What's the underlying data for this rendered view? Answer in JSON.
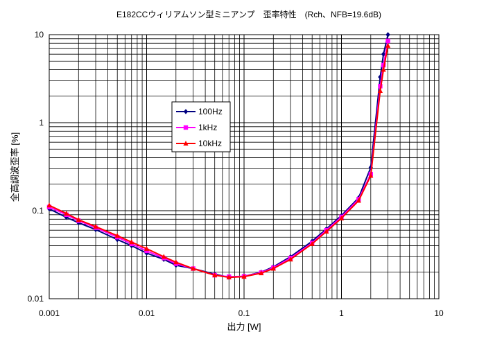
{
  "chart_data": {
    "type": "line",
    "title": "E182CCウィリアムソン型ミニアンプ　歪率特性　(Rch、NFB=19.6dB)",
    "xlabel": "出力 [W]",
    "ylabel": "全高調波歪率 [%]",
    "x_scale": "log",
    "y_scale": "log",
    "xlim": [
      0.001,
      10
    ],
    "ylim": [
      0.01,
      10
    ],
    "x_tick_labels": [
      "0.001",
      "0.01",
      "0.1",
      "1",
      "10"
    ],
    "y_tick_labels": [
      "0.01",
      "0.1",
      "1",
      "10"
    ],
    "grid": true,
    "legend_position": "center-left",
    "series": [
      {
        "name": "100Hz",
        "color": "#000080",
        "marker": "diamond",
        "x": [
          0.001,
          0.0015,
          0.002,
          0.003,
          0.005,
          0.007,
          0.01,
          0.015,
          0.02,
          0.03,
          0.05,
          0.07,
          0.1,
          0.15,
          0.2,
          0.3,
          0.5,
          0.7,
          1,
          1.5,
          2,
          2.5,
          2.7,
          3
        ],
        "y": [
          0.105,
          0.084,
          0.073,
          0.061,
          0.047,
          0.04,
          0.033,
          0.028,
          0.024,
          0.022,
          0.019,
          0.0175,
          0.018,
          0.02,
          0.023,
          0.03,
          0.045,
          0.062,
          0.088,
          0.14,
          0.31,
          3.3,
          6.0,
          10.0
        ]
      },
      {
        "name": "1kHz",
        "color": "#ff00ff",
        "marker": "square",
        "x": [
          0.001,
          0.0015,
          0.002,
          0.003,
          0.005,
          0.007,
          0.01,
          0.015,
          0.02,
          0.03,
          0.05,
          0.07,
          0.1,
          0.15,
          0.2,
          0.3,
          0.5,
          0.7,
          1,
          1.5,
          2,
          2.5,
          2.7,
          3
        ],
        "y": [
          0.11,
          0.09,
          0.077,
          0.064,
          0.05,
          0.042,
          0.035,
          0.029,
          0.025,
          0.022,
          0.0185,
          0.0178,
          0.018,
          0.0198,
          0.0225,
          0.029,
          0.043,
          0.06,
          0.085,
          0.135,
          0.26,
          2.6,
          4.5,
          8.5
        ]
      },
      {
        "name": "10kHz",
        "color": "#ff0000",
        "marker": "triangle",
        "x": [
          0.001,
          0.0015,
          0.002,
          0.003,
          0.005,
          0.007,
          0.01,
          0.015,
          0.02,
          0.03,
          0.05,
          0.07,
          0.1,
          0.15,
          0.2,
          0.3,
          0.5,
          0.7,
          1,
          1.5,
          2,
          2.5,
          2.7,
          3
        ],
        "y": [
          0.115,
          0.093,
          0.079,
          0.066,
          0.052,
          0.044,
          0.037,
          0.03,
          0.026,
          0.022,
          0.0185,
          0.0175,
          0.0178,
          0.0195,
          0.022,
          0.028,
          0.042,
          0.058,
          0.082,
          0.13,
          0.25,
          2.3,
          4.0,
          7.5
        ]
      }
    ]
  }
}
